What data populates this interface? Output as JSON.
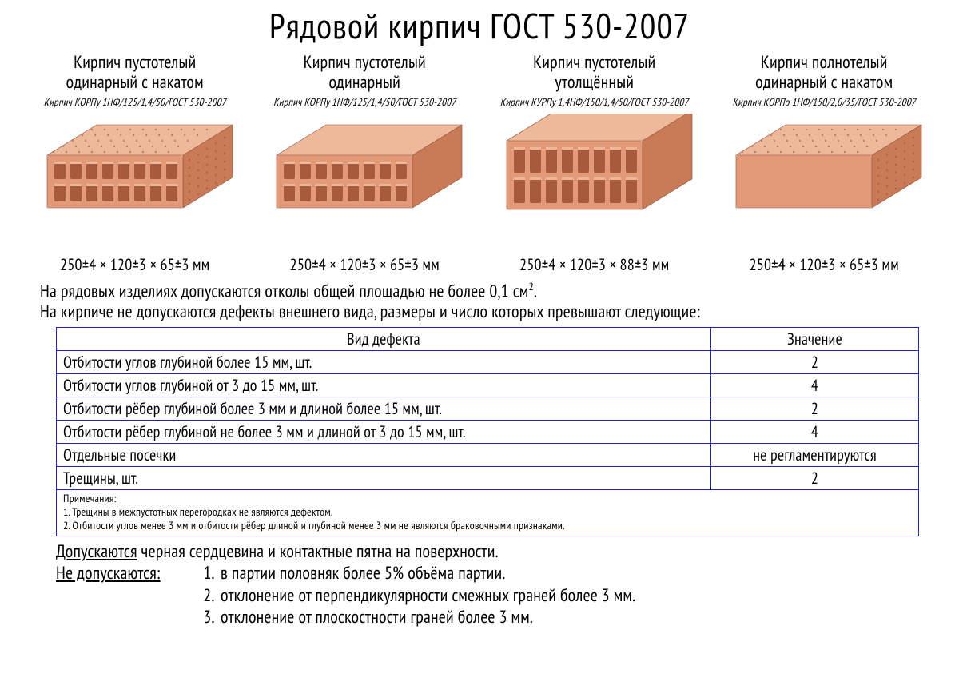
{
  "title": "Рядовой кирпич ГОСТ 530-2007",
  "colors": {
    "background": "#ffffff",
    "text": "#000000",
    "table_border": "#2020d0",
    "brick_face": "#e39a78",
    "brick_top": "#eeb89a",
    "brick_side": "#c97a56",
    "brick_hole": "#a85a3c",
    "brick_edge": "#8a4a30"
  },
  "bricks": [
    {
      "title_l1": "Кирпич пустотелый",
      "title_l2": "одинарный с накатом",
      "spec": "Кирпич КОРПу 1НФ/125/1,4/50/ГОСТ 530-2007",
      "dim": "250±4 × 120±3 × 65±3 мм",
      "style": "holes-knurl"
    },
    {
      "title_l1": "Кирпич пустотелый",
      "title_l2": "одинарный",
      "spec": "Кирпич КОРПу 1НФ/125/1,4/50/ГОСТ 530-2007",
      "dim": "250±4 × 120±3 × 65±3 мм",
      "style": "holes-smooth"
    },
    {
      "title_l1": "Кирпич пустотелый",
      "title_l2": "утолщённый",
      "spec": "Кирпич КУРПу 1,4НФ/150/1,4/50/ГОСТ 530-2007",
      "dim": "250±4 × 120±3 × 88±3 мм",
      "style": "holes-tall"
    },
    {
      "title_l1": "Кирпич полнотелый",
      "title_l2": "одинарный с накатом",
      "spec": "Кирпич КОРПо 1НФ/150/2,0/35/ГОСТ 530-2007",
      "dim": "250±4 × 120±3 × 65±3 мм",
      "style": "solid-knurl"
    }
  ],
  "note1_a": "На рядовых изделиях допускаются отколы общей площадью не более 0,1 см",
  "note1_sup": "2",
  "note1_b": ".",
  "note2": "На кирпиче не допускаются дефекты внешнего вида, размеры и число которых превышают следующие:",
  "table": {
    "columns": [
      "Вид дефекта",
      "Значение"
    ],
    "rows": [
      [
        "Отбитости углов глубиной более 15 мм, шт.",
        "2"
      ],
      [
        "Отбитости углов глубиной от 3 до 15 мм, шт.",
        "4"
      ],
      [
        "Отбитости рёбер глубиной более 3 мм и длиной более 15 мм, шт.",
        "2"
      ],
      [
        "Отбитости рёбер глубиной не более 3 мм и длиной от 3 до 15 мм, шт.",
        "4"
      ],
      [
        "Отдельные посечки",
        "не регламентируются"
      ],
      [
        "Трещины, шт.",
        "2"
      ]
    ],
    "footnote_title": "Примечания:",
    "footnotes": [
      "1. Трещины в межпустотных перегородках не являются дефектом.",
      "2. Отбитости углов менее 3 мм и отбитости рёбер длиной и глубиной менее 3 мм не являются браковочными признаками."
    ]
  },
  "allowed_label": "Допускаются",
  "allowed_text": " черная сердцевина и контактные пятна на поверхности.",
  "forbidden_label": "Не допускаются:",
  "forbidden_items": [
    "в партии половняк более 5% объёма партии.",
    "отклонение от перпендикулярности смежных граней более 3 мм.",
    "отклонение от плоскостности граней более 3 мм."
  ]
}
